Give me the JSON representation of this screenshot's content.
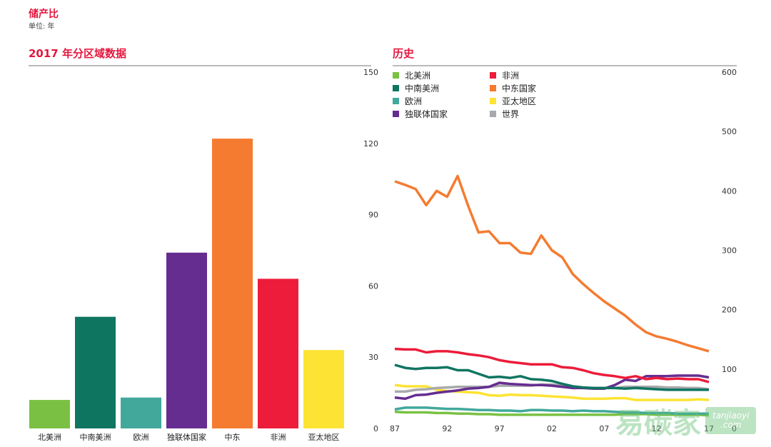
{
  "header": {
    "title": "储产比",
    "unit": "单位: 年"
  },
  "chart_data": [
    {
      "type": "bar",
      "title": "2017 年分区域数据",
      "categories": [
        "北美洲",
        "中南美洲",
        "欧洲",
        "独联体国家",
        "中东",
        "非洲",
        "亚太地区"
      ],
      "values": [
        12,
        47,
        13,
        74,
        122,
        63,
        33
      ],
      "colors": [
        "#7ac143",
        "#0e7561",
        "#41a89b",
        "#662d91",
        "#f47b30",
        "#ec1c3a",
        "#fde333"
      ],
      "ylim": [
        0,
        150
      ],
      "yticks": [
        "0",
        "30",
        "60",
        "90",
        "120",
        "150"
      ],
      "ytick_values": [
        0,
        30,
        60,
        90,
        120,
        150
      ],
      "axis_side": "right"
    },
    {
      "type": "line",
      "title": "历史",
      "legend_placement": "top-left",
      "x": [
        1987,
        1988,
        1989,
        1990,
        1991,
        1992,
        1993,
        1994,
        1995,
        1996,
        1997,
        1998,
        1999,
        2000,
        2001,
        2002,
        2003,
        2004,
        2005,
        2006,
        2007,
        2008,
        2009,
        2010,
        2011,
        2012,
        2013,
        2014,
        2015,
        2016,
        2017
      ],
      "xticks": [
        "87",
        "92",
        "97",
        "02",
        "07",
        "12",
        "17"
      ],
      "xtick_values": [
        1987,
        1992,
        1997,
        2002,
        2007,
        2012,
        2017
      ],
      "ylim": [
        0,
        600
      ],
      "yticks": [
        "0",
        "100",
        "200",
        "300",
        "400",
        "500",
        "600"
      ],
      "ytick_values": [
        0,
        100,
        200,
        300,
        400,
        500,
        600
      ],
      "axis_side": "right",
      "series": [
        {
          "name": "北美洲",
          "color": "#7ac143",
          "values": [
            28,
            27,
            27,
            27,
            26,
            26,
            25,
            25,
            24,
            24,
            23,
            23,
            23,
            23,
            23,
            23,
            23,
            23,
            23,
            23,
            23,
            23,
            24,
            24,
            24,
            23,
            23,
            23,
            23,
            23,
            22
          ]
        },
        {
          "name": "中南美洲",
          "color": "#0e7561",
          "values": [
            107,
            102,
            100,
            102,
            102,
            103,
            98,
            98,
            92,
            86,
            87,
            85,
            88,
            83,
            82,
            80,
            75,
            71,
            69,
            68,
            68,
            68,
            67,
            68,
            67,
            66,
            65,
            65,
            65,
            65,
            65
          ]
        },
        {
          "name": "欧洲",
          "color": "#41a89b",
          "values": [
            32,
            35,
            35,
            35,
            34,
            33,
            33,
            32,
            31,
            31,
            30,
            30,
            29,
            31,
            31,
            30,
            30,
            29,
            30,
            29,
            29,
            28,
            27,
            27,
            26,
            26,
            26,
            25,
            25,
            25,
            25
          ]
        },
        {
          "name": "独联体国家",
          "color": "#662d91",
          "values": [
            52,
            50,
            56,
            57,
            60,
            62,
            64,
            67,
            68,
            70,
            77,
            75,
            74,
            73,
            73,
            72,
            70,
            68,
            68,
            67,
            67,
            73,
            82,
            80,
            88,
            88,
            88,
            89,
            89,
            89,
            86
          ]
        },
        {
          "name": "非洲",
          "color": "#ec1c3a",
          "values": [
            134,
            133,
            133,
            128,
            130,
            130,
            128,
            125,
            123,
            120,
            115,
            112,
            110,
            108,
            108,
            108,
            103,
            102,
            98,
            93,
            90,
            88,
            85,
            88,
            83,
            85,
            83,
            84,
            83,
            83,
            78
          ]
        },
        {
          "name": "中东国家",
          "color": "#f47b30",
          "values": [
            416,
            410,
            403,
            376,
            400,
            390,
            425,
            375,
            330,
            332,
            312,
            312,
            296,
            294,
            325,
            300,
            288,
            260,
            243,
            228,
            214,
            202,
            190,
            175,
            162,
            155,
            151,
            146,
            140,
            135,
            130
          ]
        },
        {
          "name": "亚太地区",
          "color": "#fde333",
          "values": [
            73,
            71,
            71,
            71,
            65,
            63,
            62,
            61,
            60,
            56,
            55,
            57,
            56,
            56,
            55,
            54,
            53,
            52,
            50,
            50,
            50,
            51,
            51,
            48,
            48,
            48,
            48,
            48,
            48,
            49,
            48
          ]
        },
        {
          "name": "世界",
          "color": "#a7a9ac",
          "values": [
            62,
            62,
            65,
            66,
            68,
            69,
            70,
            70,
            70,
            70,
            72,
            72,
            72,
            72,
            74,
            74,
            72,
            70,
            68,
            68,
            68,
            68,
            70,
            70,
            70,
            70,
            69,
            69,
            68,
            68,
            66
          ]
        }
      ]
    }
  ],
  "legend_order": [
    0,
    4,
    1,
    5,
    2,
    6,
    3,
    7
  ],
  "watermark": {
    "cn": "易碳家",
    "en1": "tanjiaoyi",
    "en2": ".com"
  }
}
